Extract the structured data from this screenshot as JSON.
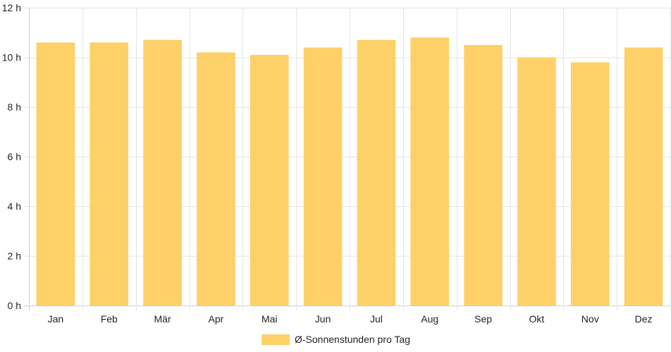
{
  "chart_data": {
    "type": "bar",
    "categories": [
      "Jan",
      "Feb",
      "Mär",
      "Apr",
      "Mai",
      "Jun",
      "Jul",
      "Aug",
      "Sep",
      "Okt",
      "Nov",
      "Dez"
    ],
    "series": [
      {
        "name": "Ø-Sonnenstunden pro Tag",
        "values": [
          10.6,
          10.6,
          10.7,
          10.2,
          10.1,
          10.4,
          10.7,
          10.8,
          10.5,
          10.0,
          9.8,
          10.4
        ],
        "color": "#fdd068"
      }
    ],
    "ylim": [
      0,
      12
    ],
    "yticks": [
      0,
      2,
      4,
      6,
      8,
      10,
      12
    ],
    "ytick_labels": [
      "0 h",
      "2 h",
      "4 h",
      "6 h",
      "8 h",
      "10 h",
      "12 h"
    ],
    "grid": true,
    "legend_position": "bottom"
  }
}
